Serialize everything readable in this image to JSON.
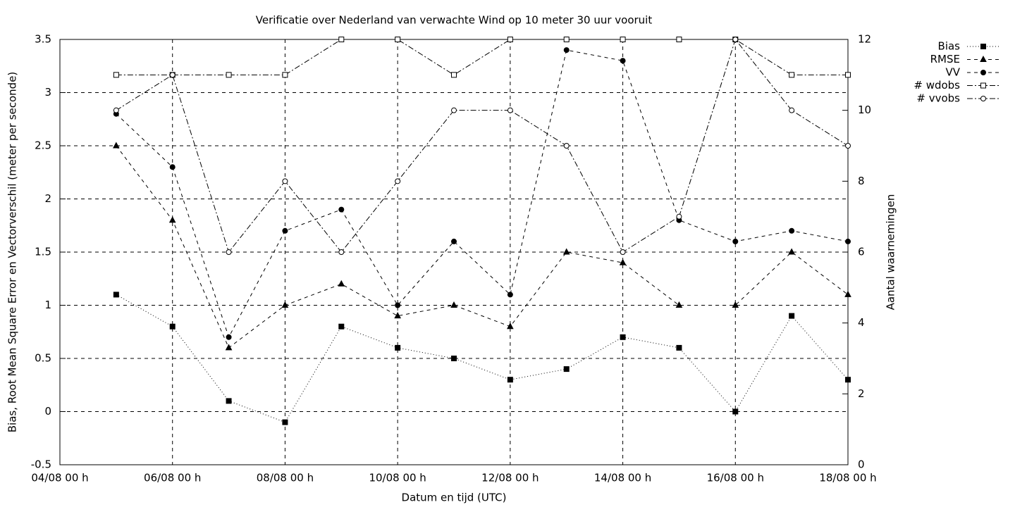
{
  "chart_data": {
    "type": "line",
    "title": "Verificatie over Nederland van verwachte Wind op 10 meter 30 uur vooruit",
    "x_label": "Datum en tijd (UTC)",
    "y_label": "Bias, Root Mean Square Error en Vectorverschil (meter per seconde)",
    "y2_label": "Aantal waarnemingen",
    "x": [
      5,
      6,
      7,
      8,
      9,
      10,
      11,
      12,
      13,
      14,
      15,
      16,
      17,
      18
    ],
    "xlim": [
      4,
      18
    ],
    "xticks": [
      {
        "value": 4,
        "label": "04/08 00 h"
      },
      {
        "value": 6,
        "label": "06/08 00 h"
      },
      {
        "value": 8,
        "label": "08/08 00 h"
      },
      {
        "value": 10,
        "label": "10/08 00 h"
      },
      {
        "value": 12,
        "label": "12/08 00 h"
      },
      {
        "value": 14,
        "label": "14/08 00 h"
      },
      {
        "value": 16,
        "label": "16/08 00 h"
      },
      {
        "value": 18,
        "label": "18/08 00 h"
      }
    ],
    "ylim": [
      -0.5,
      3.5
    ],
    "yticks": [
      -0.5,
      0,
      0.5,
      1,
      1.5,
      2,
      2.5,
      3,
      3.5
    ],
    "y2lim": [
      0,
      12
    ],
    "y2ticks": [
      0,
      2,
      4,
      6,
      8,
      10,
      12
    ],
    "grid": true,
    "legend": "outside-top-right",
    "series": [
      {
        "name": "Bias",
        "color": "#000000",
        "dash": "1,3",
        "marker": "square",
        "filled": true,
        "values": [
          1.1,
          0.8,
          0.1,
          -0.1,
          0.8,
          0.6,
          0.5,
          0.3,
          0.4,
          0.7,
          0.6,
          0.0,
          0.9,
          0.3
        ]
      },
      {
        "name": "RMSE",
        "color": "#000000",
        "dash": "5,5",
        "marker": "triangle",
        "filled": true,
        "values": [
          2.5,
          1.8,
          0.6,
          1.0,
          1.2,
          0.9,
          1.0,
          0.8,
          1.5,
          1.4,
          1.0,
          1.0,
          1.5,
          1.1
        ]
      },
      {
        "name": "VV",
        "color": "#000000",
        "dash": "5,5",
        "marker": "circle",
        "filled": true,
        "values": [
          2.8,
          2.3,
          0.7,
          1.7,
          1.9,
          1.0,
          1.6,
          1.1,
          3.4,
          3.3,
          1.8,
          1.6,
          1.7,
          1.6
        ]
      },
      {
        "name": "# wdobs",
        "color": "#000000",
        "dash": "8,3,2,3",
        "marker": "square",
        "filled": false,
        "axis": "y2",
        "values": [
          11,
          11,
          11,
          11,
          12,
          12,
          11,
          12,
          12,
          12,
          12,
          12,
          11,
          11
        ]
      },
      {
        "name": "# vvobs",
        "color": "#000000",
        "dash": "8,3,2,3",
        "marker": "circle",
        "filled": false,
        "axis": "y2",
        "values": [
          10,
          11,
          6,
          8,
          6,
          8,
          10,
          10,
          9,
          6,
          7,
          12,
          10,
          9
        ]
      }
    ]
  }
}
